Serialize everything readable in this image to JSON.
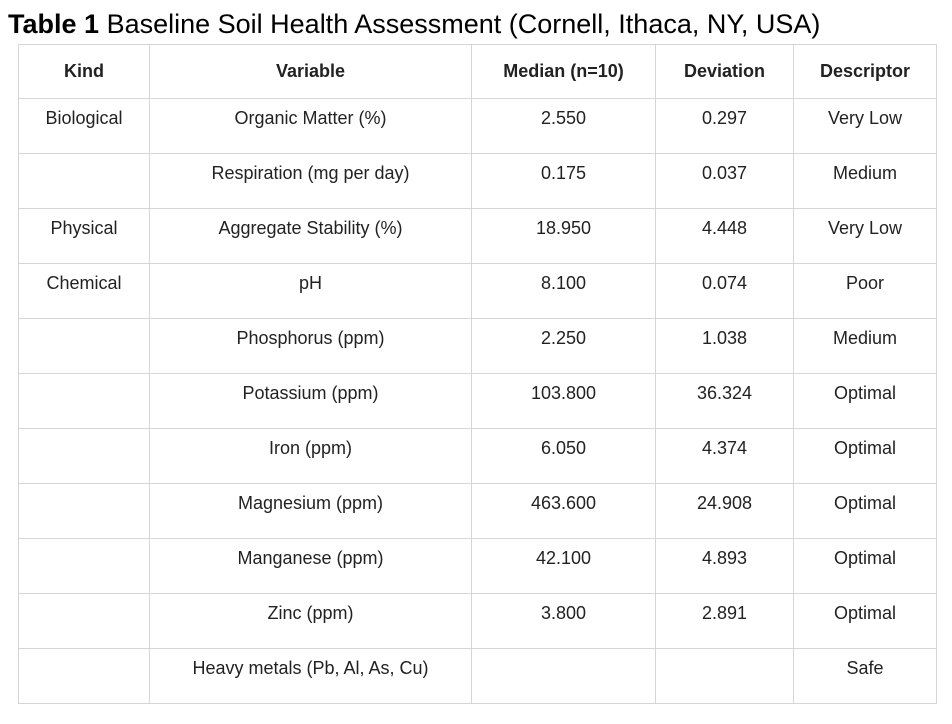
{
  "caption": {
    "label": "Table 1",
    "text": "Baseline Soil Health Assessment (Cornell, Ithaca, NY, USA)"
  },
  "table": {
    "headers": {
      "kind": "Kind",
      "variable": "Variable",
      "median": "Median (n=10)",
      "deviation": "Deviation",
      "descriptor": "Descriptor"
    },
    "rows": [
      {
        "kind": "Biological",
        "variable": "Organic Matter (%)",
        "median": "2.550",
        "deviation": "0.297",
        "descriptor": "Very Low"
      },
      {
        "kind": "",
        "variable": "Respiration (mg per day)",
        "median": "0.175",
        "deviation": "0.037",
        "descriptor": "Medium"
      },
      {
        "kind": "Physical",
        "variable": "Aggregate Stability (%)",
        "median": "18.950",
        "deviation": "4.448",
        "descriptor": "Very Low"
      },
      {
        "kind": "Chemical",
        "variable": "pH",
        "median": "8.100",
        "deviation": "0.074",
        "descriptor": "Poor"
      },
      {
        "kind": "",
        "variable": "Phosphorus (ppm)",
        "median": "2.250",
        "deviation": "1.038",
        "descriptor": "Medium"
      },
      {
        "kind": "",
        "variable": "Potassium (ppm)",
        "median": "103.800",
        "deviation": "36.324",
        "descriptor": "Optimal"
      },
      {
        "kind": "",
        "variable": "Iron (ppm)",
        "median": "6.050",
        "deviation": "4.374",
        "descriptor": "Optimal"
      },
      {
        "kind": "",
        "variable": "Magnesium (ppm)",
        "median": "463.600",
        "deviation": "24.908",
        "descriptor": "Optimal"
      },
      {
        "kind": "",
        "variable": "Manganese (ppm)",
        "median": "42.100",
        "deviation": "4.893",
        "descriptor": "Optimal"
      },
      {
        "kind": "",
        "variable": "Zinc (ppm)",
        "median": "3.800",
        "deviation": "2.891",
        "descriptor": "Optimal"
      },
      {
        "kind": "",
        "variable": "Heavy metals (Pb, Al, As, Cu)",
        "median": "",
        "deviation": "",
        "descriptor": "Safe"
      }
    ]
  }
}
